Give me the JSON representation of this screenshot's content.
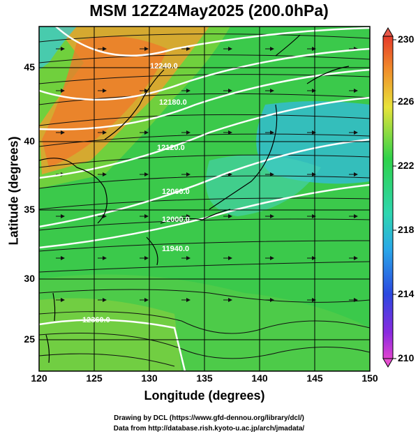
{
  "title": "MSM 12Z24May2025 (200.0hPa)",
  "xlabel": "Longitude (degrees)",
  "ylabel": "Latitude  (degrees)",
  "x_ticks": [
    "120",
    "125",
    "130",
    "135",
    "140",
    "145",
    "150"
  ],
  "y_ticks": [
    "25",
    "30",
    "35",
    "40",
    "45"
  ],
  "colorbar_ticks": [
    "230",
    "226",
    "222",
    "218",
    "214",
    "210"
  ],
  "contour_labels": [
    "12240.0",
    "12180.0",
    "12120.0",
    "12060.0",
    "12000.0",
    "11940.0",
    "12360.0"
  ],
  "credit_line1": "Drawing by DCL (https://www.gfd-dennou.org/library/dcl/)",
  "credit_line2": "Data from http://database.rish.kyoto-u.ac.jp/arch/jmadata/",
  "chart_data": {
    "type": "heatmap",
    "field": "temperature with streamlines and height contours",
    "x_range": [
      120,
      150
    ],
    "y_range": [
      22.5,
      48
    ],
    "colorbar_range": [
      210,
      230
    ],
    "colors": {
      "colorbar_top": "#e8584a",
      "colorbar_bottom": "#e54fd0",
      "warm": "#f07a2a",
      "mid": "#22c84a",
      "cool": "#3aa6dd"
    }
  }
}
